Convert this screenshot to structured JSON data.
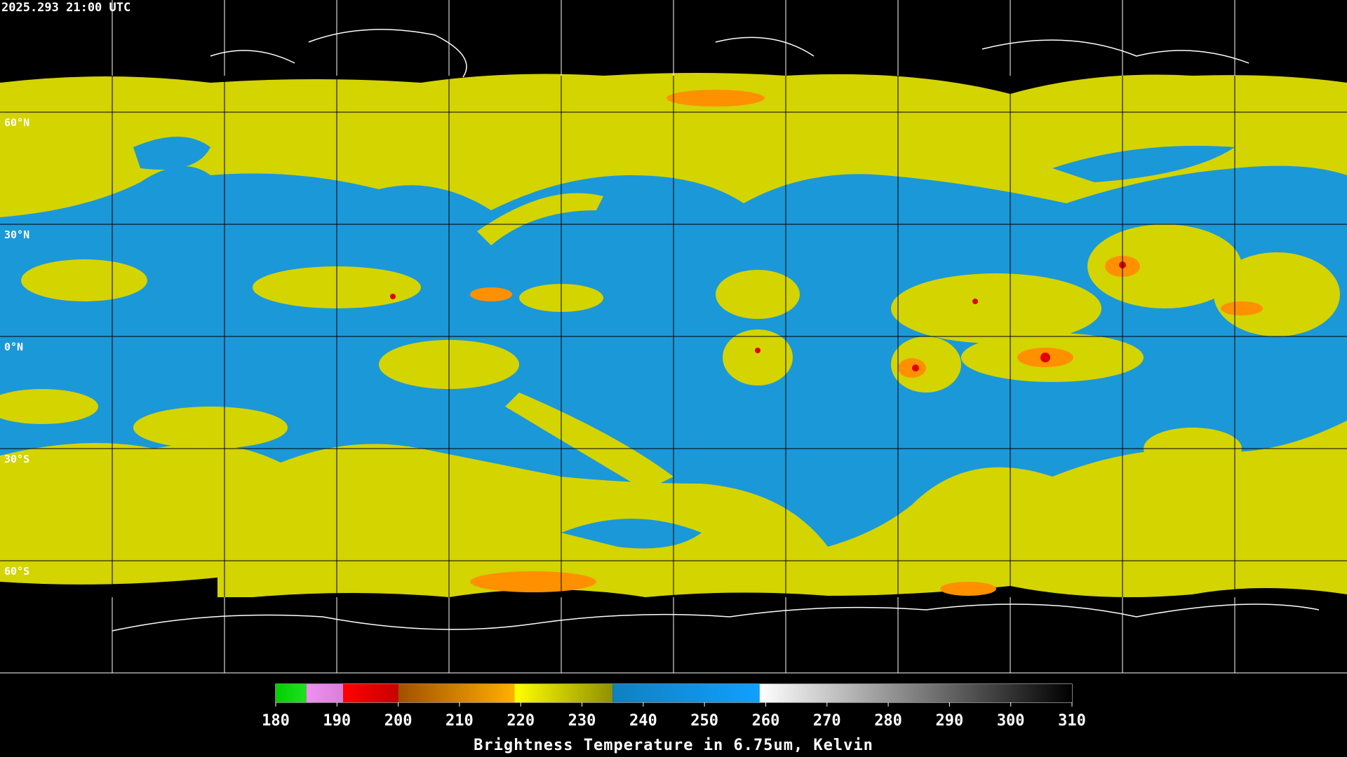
{
  "header": {
    "timestamp": "2025.293 21:00 UTC"
  },
  "map": {
    "latlim": [
      90,
      -90
    ],
    "lat_ticks": [
      {
        "value": 60,
        "label": "60°N"
      },
      {
        "value": 30,
        "label": "30°N"
      },
      {
        "value": 0,
        "label": "0°N"
      },
      {
        "value": -30,
        "label": "30°S"
      },
      {
        "value": -60,
        "label": "60°S"
      }
    ]
  },
  "colorbar": {
    "title": "Brightness Temperature in 6.75um, Kelvin",
    "lim": [
      180,
      310
    ],
    "ticks": [
      180,
      190,
      200,
      210,
      220,
      230,
      240,
      250,
      260,
      270,
      280,
      290,
      300,
      310
    ],
    "segments": [
      {
        "from": 180,
        "to": 185,
        "colors": [
          "#00d000",
          "#20e020"
        ]
      },
      {
        "from": 185,
        "to": 191,
        "colors": [
          "#f090f0",
          "#d880d8"
        ]
      },
      {
        "from": 191,
        "to": 200,
        "colors": [
          "#ff0000",
          "#c80000"
        ]
      },
      {
        "from": 200,
        "to": 219,
        "colors": [
          "#a05000",
          "#ffb000"
        ]
      },
      {
        "from": 219,
        "to": 235,
        "colors": [
          "#ffff00",
          "#909000"
        ]
      },
      {
        "from": 235,
        "to": 259,
        "colors": [
          "#1080c0",
          "#10a0ff"
        ]
      },
      {
        "from": 259,
        "to": 310,
        "colors": [
          "#ffffff",
          "#000000"
        ]
      }
    ]
  }
}
